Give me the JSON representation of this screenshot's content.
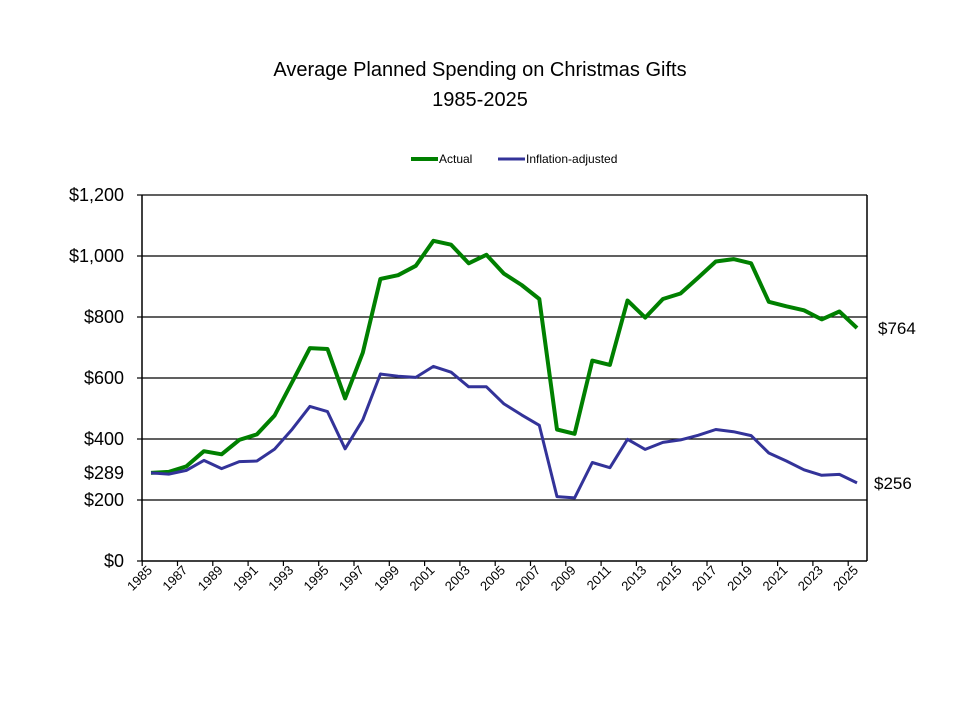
{
  "chart_data": {
    "type": "line",
    "title": "Average Planned Spending on Christmas Gifts",
    "subtitle": "1985-2025",
    "xlabel": "",
    "ylabel": "",
    "ylim": [
      0,
      1200
    ],
    "yticks": [
      0,
      200,
      400,
      600,
      800,
      1000,
      1200
    ],
    "ytick_labels": [
      "$0",
      "$200",
      "$400",
      "$600",
      "$800",
      "$1,000",
      "$1,200"
    ],
    "x": [
      1985,
      1986,
      1987,
      1988,
      1989,
      1990,
      1991,
      1992,
      1993,
      1994,
      1995,
      1996,
      1997,
      1998,
      1999,
      2000,
      2001,
      2002,
      2003,
      2004,
      2005,
      2006,
      2007,
      2008,
      2009,
      2010,
      2011,
      2012,
      2013,
      2014,
      2015,
      2016,
      2017,
      2018,
      2019,
      2020,
      2021,
      2022,
      2023,
      2024,
      2025
    ],
    "xtick_labels": [
      "1985",
      "1987",
      "1989",
      "1991",
      "1993",
      "1995",
      "1997",
      "1999",
      "2001",
      "2003",
      "2005",
      "2007",
      "2009",
      "2011",
      "2013",
      "2015",
      "2017",
      "2019",
      "2021",
      "2023",
      "2025"
    ],
    "grid": "horizontal",
    "legend_position": "top-center",
    "series": [
      {
        "name": "Actual",
        "color": "#008000",
        "values": [
          289,
          292,
          310,
          360,
          350,
          397,
          415,
          477,
          587,
          698,
          695,
          533,
          683,
          925,
          937,
          968,
          1050,
          1037,
          976,
          1004,
          942,
          905,
          859,
          431,
          417,
          657,
          643,
          854,
          798,
          859,
          877,
          929,
          982,
          990,
          976,
          850,
          835,
          822,
          792,
          818,
          764
        ]
      },
      {
        "name": "Inflation-adjusted",
        "color": "#333399",
        "values": [
          289,
          285,
          297,
          330,
          303,
          326,
          328,
          367,
          432,
          507,
          490,
          368,
          463,
          613,
          606,
          602,
          638,
          619,
          571,
          571,
          515,
          479,
          445,
          211,
          207,
          323,
          306,
          399,
          366,
          389,
          397,
          412,
          431,
          424,
          411,
          354,
          328,
          299,
          281,
          284,
          256
        ]
      }
    ],
    "annotations": [
      {
        "text": "$289",
        "year": 1985,
        "value": 289,
        "side": "left"
      },
      {
        "text": "$764",
        "year": 2025,
        "value": 764,
        "side": "right",
        "series": "Actual"
      },
      {
        "text": "$256",
        "year": 2025,
        "value": 256,
        "side": "right",
        "series": "Inflation-adjusted"
      }
    ]
  }
}
